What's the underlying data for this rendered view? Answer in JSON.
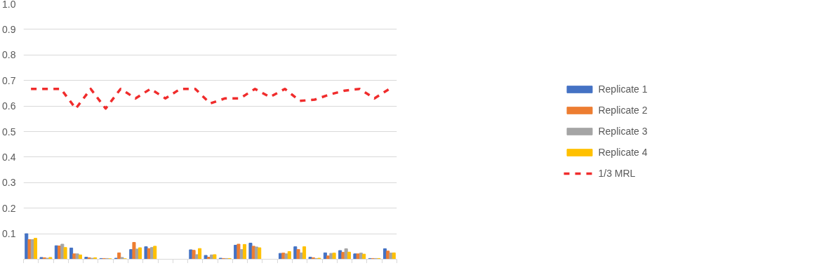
{
  "chart_data": {
    "type": "bar",
    "categories": [
      null,
      null,
      null,
      null,
      null,
      null,
      null,
      null,
      null,
      null,
      null,
      null,
      null,
      null,
      null,
      null,
      null,
      null,
      null,
      null,
      null,
      null,
      null,
      null,
      null
    ],
    "series": [
      {
        "name": "Replicate 1",
        "color": "#4472c4",
        "values": [
          0.1,
          0.007,
          0.053,
          0.044,
          0.008,
          0.003,
          0.004,
          0.038,
          0.049,
          null,
          null,
          0.037,
          0.015,
          0.004,
          0.055,
          0.063,
          null,
          0.023,
          0.049,
          0.008,
          0.025,
          0.034,
          0.021,
          0.003,
          0.041
        ]
      },
      {
        "name": "Replicate 2",
        "color": "#ed7d31",
        "values": [
          0.077,
          0.006,
          0.052,
          0.021,
          0.006,
          0.003,
          0.025,
          0.066,
          0.042,
          null,
          null,
          0.035,
          0.008,
          0.003,
          0.059,
          0.051,
          null,
          0.024,
          0.038,
          0.006,
          0.013,
          0.027,
          0.021,
          0.003,
          0.032
        ]
      },
      {
        "name": "Replicate 3",
        "color": "#a5a5a5",
        "values": [
          0.077,
          0.004,
          0.059,
          0.021,
          0.004,
          0.003,
          0.007,
          0.04,
          0.046,
          null,
          null,
          0.018,
          0.017,
          0.003,
          0.038,
          0.048,
          null,
          0.021,
          0.025,
          0.003,
          0.023,
          0.041,
          0.024,
          0.003,
          0.024
        ]
      },
      {
        "name": "Replicate 4",
        "color": "#ffc000",
        "values": [
          0.082,
          0.007,
          0.046,
          0.017,
          0.006,
          0.002,
          0.002,
          0.045,
          0.051,
          null,
          null,
          0.042,
          0.018,
          0.003,
          0.058,
          0.045,
          null,
          0.03,
          0.049,
          0.004,
          0.024,
          0.028,
          0.02,
          0.003,
          0.025
        ]
      },
      {
        "name": "1/3 MRL",
        "type": "line",
        "line_style": "dashed",
        "color": "#f02c2c",
        "values": [
          0.667,
          0.667,
          0.667,
          0.59,
          0.667,
          0.59,
          0.667,
          0.63,
          0.667,
          0.63,
          0.667,
          0.667,
          0.61,
          0.63,
          0.63,
          0.667,
          0.635,
          0.667,
          0.62,
          0.625,
          0.645,
          0.66,
          0.667,
          0.63,
          0.667
        ]
      }
    ],
    "ylim": [
      0,
      1.0
    ],
    "yticks": [
      0.1,
      0.2,
      0.3,
      0.4,
      0.5,
      0.6,
      0.7,
      0.8,
      0.9,
      {
        "value": 1.0,
        "label": "1.0"
      }
    ],
    "grid": "y",
    "legend": "right"
  }
}
